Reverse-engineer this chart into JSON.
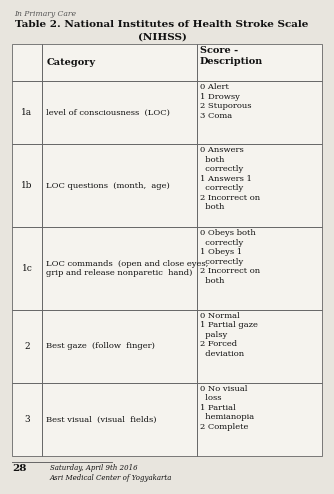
{
  "title_line1": "Table 2. National Institutes of Health Stroke Scale",
  "title_line2": "(NIHSS)",
  "rows": [
    {
      "num": "1a",
      "category": "level of consciousness  (LOC)",
      "score": "0 Alert\n1 Drowsy\n2 Stuporous\n3 Coma"
    },
    {
      "num": "1b",
      "category": "LOC questions  (month,  age)",
      "score": "0 Answers\n  both\n  correctly\n1 Answers 1\n  correctly\n2 Incorrect on\n  both"
    },
    {
      "num": "1c",
      "category": "LOC commands  (open and close eyes,\ngrip and release nonparetic  hand)",
      "score": "0 Obeys both\n  correctly\n1 Obeys 1\n  correctly\n2 Incorrect on\n  both"
    },
    {
      "num": "2",
      "category": "Best gaze  (follow  finger)",
      "score": "0 Normal\n1 Partial gaze\n  palsy\n2 Forced\n  deviation"
    },
    {
      "num": "3",
      "category": "Best visual  (visual  fields)",
      "score": "0 No visual\n  loss\n1 Partial\n  hemianopia\n2 Complete"
    }
  ],
  "footer_line1": "Saturday, April 9th 2016",
  "footer_line2": "Asri Medical Center of Yogyakarta",
  "page_num": "28",
  "top_text": "In Primary Care",
  "bg_color": "#e8e5de",
  "table_bg": "#f5f3ee",
  "line_color": "#666666",
  "text_color": "#111111",
  "title_fontsize": 7.5,
  "body_fontsize": 6.5,
  "header_fontsize": 7.0
}
